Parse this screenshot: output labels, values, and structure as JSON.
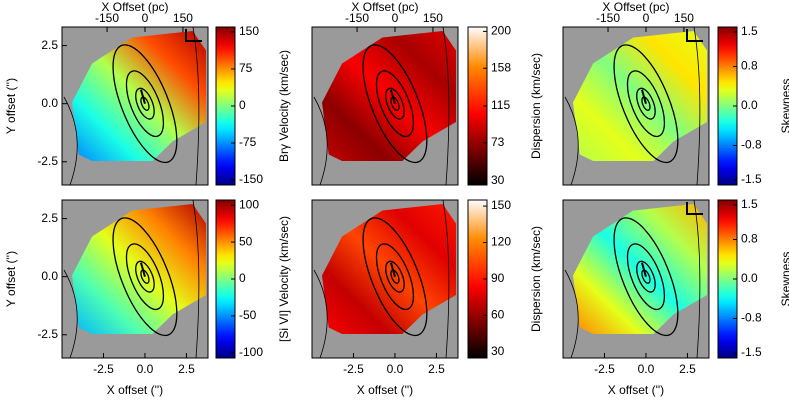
{
  "chart_data": [
    {
      "type": "map",
      "xlim": [
        -5,
        3.8
      ],
      "ylim": [
        -3.5,
        3.3
      ],
      "yticks": [
        -2.5,
        {
          "value": 0,
          "label": "0.0"
        },
        2.5
      ],
      "ylabel": "Y offset ('')",
      "top_xlabel": "X Offset (pc)",
      "top_xlim": [
        -328,
        249
      ],
      "top_xticks": [
        -150,
        0,
        150
      ],
      "colorbar": {
        "label": "Brγ Velocity (km/sec)",
        "lim": [
          -160,
          160
        ],
        "ticks": [
          -150,
          -75,
          0,
          75,
          150
        ],
        "colormap": "jet"
      }
    },
    {
      "type": "map",
      "xlim": [
        -5,
        3.8
      ],
      "ylim": [
        -3.5,
        3.3
      ],
      "top_xlabel": "X Offset (pc)",
      "top_xlim": [
        -328,
        249
      ],
      "top_xticks": [
        -150,
        0,
        150
      ],
      "colorbar": {
        "label": "Dispersion (km/sec)",
        "lim": [
          25,
          205
        ],
        "ticks": [
          30,
          73,
          115,
          158,
          200
        ],
        "colormap": "heat"
      }
    },
    {
      "type": "map",
      "xlim": [
        -5,
        3.8
      ],
      "ylim": [
        -3.5,
        3.3
      ],
      "top_xlabel": "X Offset (pc)",
      "top_xlim": [
        -328,
        249
      ],
      "top_xticks": [
        -150,
        0,
        150
      ],
      "colorbar": {
        "label": "Skewness",
        "lim": [
          -1.6,
          1.6
        ],
        "ticks": [
          -1.5,
          -0.8,
          {
            "value": 0,
            "label": "0.0"
          },
          0.8,
          1.5
        ],
        "colormap": "jet"
      }
    },
    {
      "type": "map",
      "xlim": [
        -5,
        3.8
      ],
      "ylim": [
        -3.5,
        3.3
      ],
      "yticks": [
        -2.5,
        {
          "value": 0,
          "label": "0.0"
        },
        2.5
      ],
      "ylabel": "Y offset ('')",
      "xticks": [
        -2.5,
        {
          "value": 0,
          "label": "0.0"
        },
        2.5
      ],
      "xlabel": "X offset ('')",
      "colorbar": {
        "label": "[Si VI] Velocity (km/sec)",
        "lim": [
          -107,
          107
        ],
        "ticks": [
          -100,
          -50,
          0,
          50,
          100
        ],
        "colormap": "jet"
      }
    },
    {
      "type": "map",
      "xlim": [
        -5,
        3.8
      ],
      "ylim": [
        -3.5,
        3.3
      ],
      "xticks": [
        -2.5,
        {
          "value": 0,
          "label": "0.0"
        },
        2.5
      ],
      "xlabel": "X offset ('')",
      "colorbar": {
        "label": "Dispersion (km/sec)",
        "lim": [
          25,
          155
        ],
        "ticks": [
          30,
          60,
          90,
          120,
          150
        ],
        "colormap": "heat"
      }
    },
    {
      "type": "map",
      "xlim": [
        -5,
        3.8
      ],
      "ylim": [
        -3.5,
        3.3
      ],
      "xticks": [
        -2.5,
        {
          "value": 0,
          "label": "0.0"
        },
        2.5
      ],
      "xlabel": "X offset ('')",
      "colorbar": {
        "label": "Skewness",
        "lim": [
          -1.6,
          1.6
        ],
        "ticks": [
          -1.5,
          -0.8,
          {
            "value": 0,
            "label": "0.0"
          },
          0.8,
          1.5
        ],
        "colormap": "jet"
      }
    }
  ]
}
